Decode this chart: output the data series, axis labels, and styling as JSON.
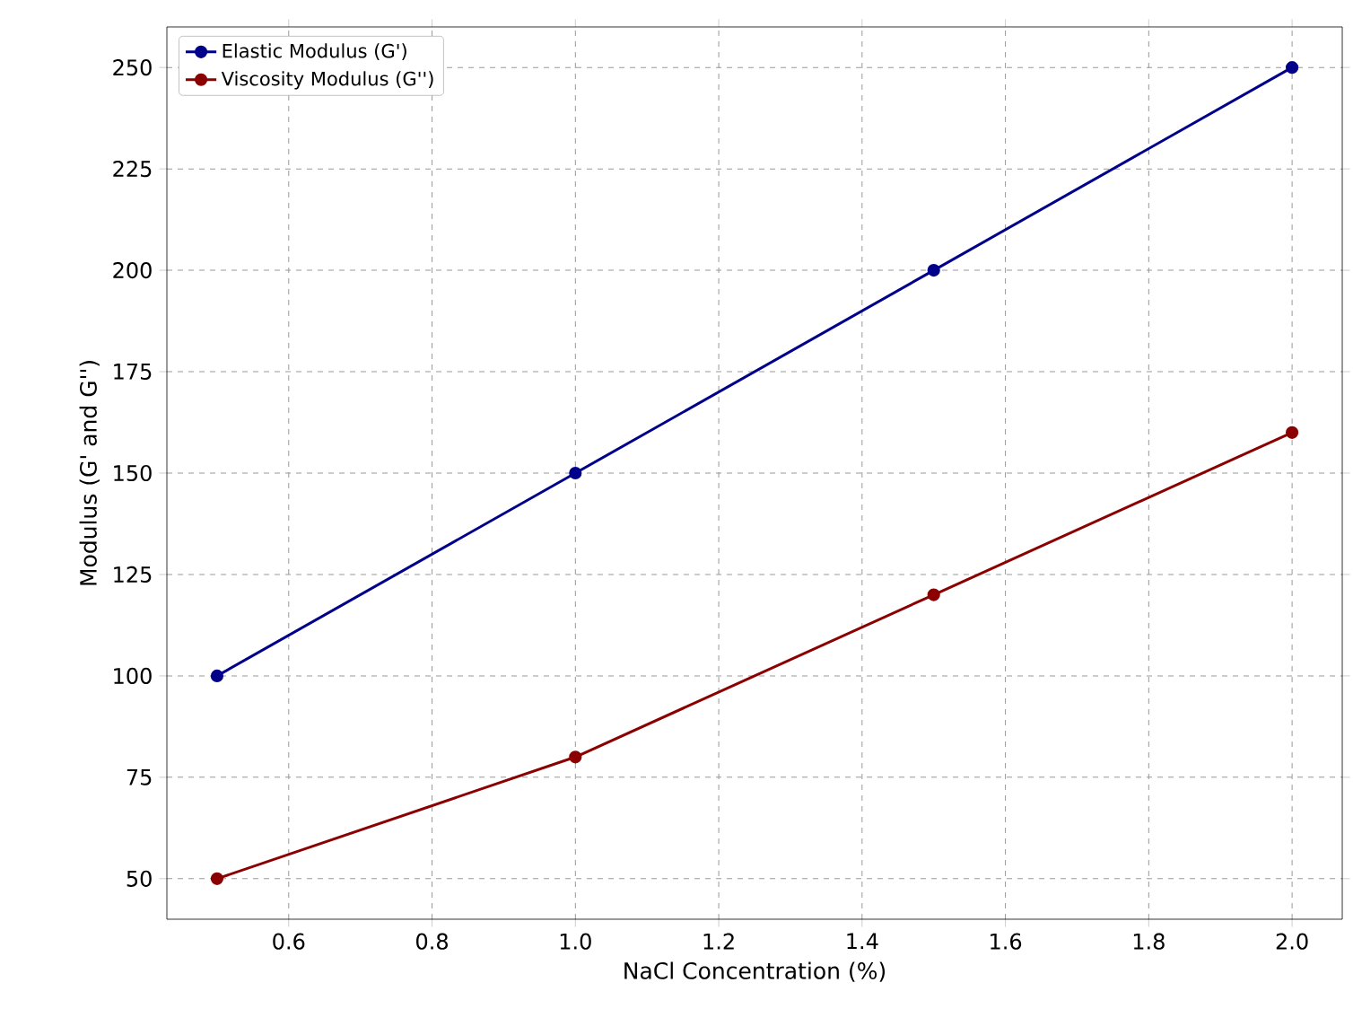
{
  "chart_data": {
    "type": "line",
    "xlabel": "NaCl Concentration (%)",
    "ylabel": "Modulus (G' and G'')",
    "x": [
      0.5,
      1.0,
      1.5,
      2.0
    ],
    "series": [
      {
        "name": "Elastic Modulus (G')",
        "color": "#00008b",
        "values": [
          100,
          150,
          200,
          250
        ]
      },
      {
        "name": "Viscosity Modulus (G'')",
        "color": "#8b0000",
        "values": [
          50,
          80,
          120,
          160
        ]
      }
    ],
    "xlim": [
      0.43,
      2.07
    ],
    "ylim": [
      40,
      260
    ],
    "xticks": [
      {
        "value": 0.6,
        "label": "0.6"
      },
      {
        "value": 0.8,
        "label": "0.8"
      },
      {
        "value": 1.0,
        "label": "1.0"
      },
      {
        "value": 1.2,
        "label": "1.2"
      },
      {
        "value": 1.4,
        "label": "1.4"
      },
      {
        "value": 1.6,
        "label": "1.6"
      },
      {
        "value": 1.8,
        "label": "1.8"
      },
      {
        "value": 2.0,
        "label": "2.0"
      }
    ],
    "yticks": [
      50,
      75,
      100,
      125,
      150,
      175,
      200,
      225,
      250
    ],
    "grid": true,
    "legend": "top left",
    "marker": "circle",
    "line_style": "solid"
  }
}
